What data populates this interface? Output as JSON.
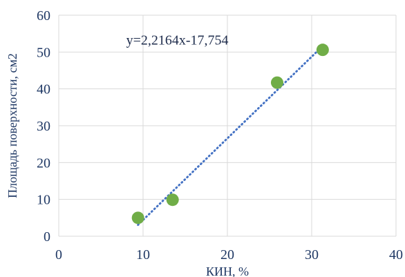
{
  "chart_data": {
    "type": "scatter",
    "xlabel": "КИН, %",
    "ylabel": "Площадь поверхности, см2",
    "xlim": [
      0,
      40
    ],
    "ylim": [
      0,
      60
    ],
    "x_ticks": [
      0,
      10,
      20,
      30,
      40
    ],
    "y_ticks": [
      0,
      10,
      20,
      30,
      40,
      50,
      60
    ],
    "grid": "both",
    "series": [
      {
        "points": [
          {
            "x": 9.4,
            "y": 5.0
          },
          {
            "x": 13.5,
            "y": 9.9
          },
          {
            "x": 25.9,
            "y": 41.7
          },
          {
            "x": 31.3,
            "y": 50.6
          }
        ],
        "color": "#70ad47"
      }
    ],
    "trendline": {
      "type": "linear",
      "slope": 2.2164,
      "intercept": -17.754,
      "x_range": [
        9.4,
        31.3
      ],
      "style": "dotted",
      "color": "#4472c4"
    },
    "annotations": [
      {
        "text": "y=2,2164x-17,754"
      }
    ]
  }
}
